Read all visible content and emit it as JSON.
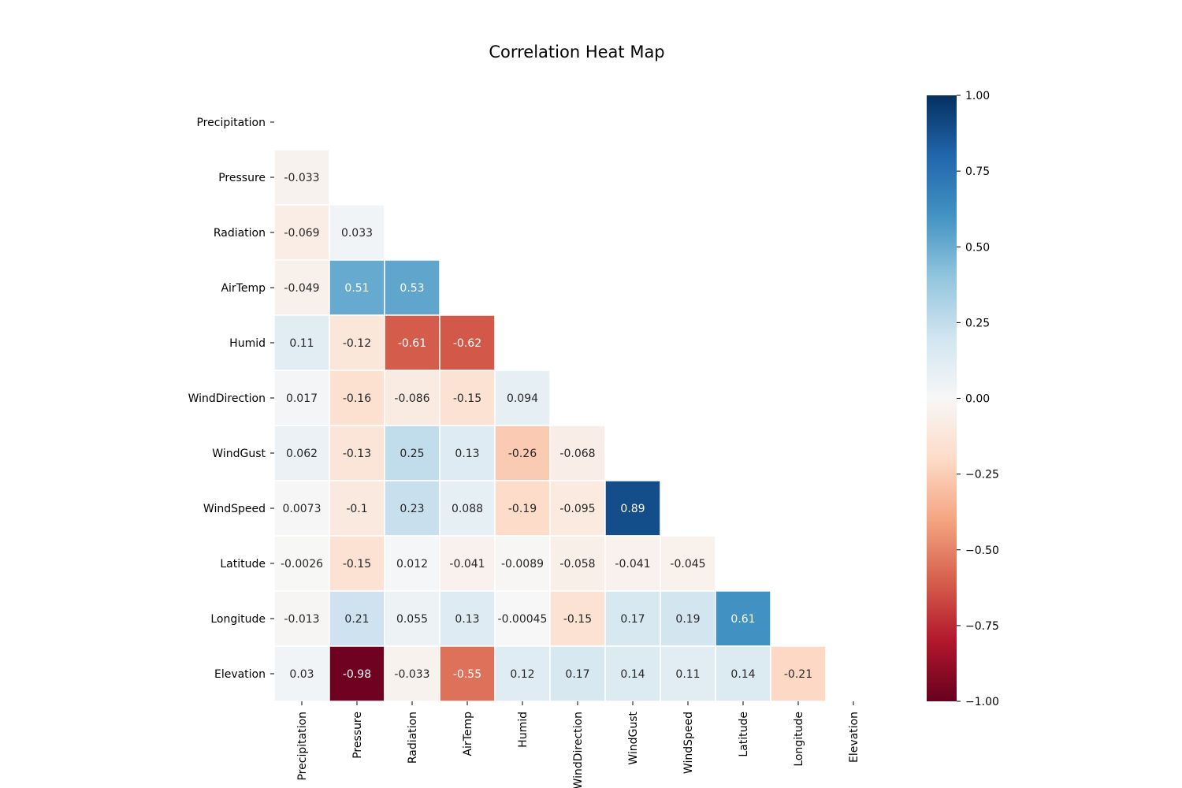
{
  "chart_data": {
    "type": "heatmap",
    "title": "Correlation Heat Map",
    "labels": [
      "Precipitation",
      "Pressure",
      "Radiation",
      "AirTemp",
      "Humid",
      "WindDirection",
      "WindGust",
      "WindSpeed",
      "Latitude",
      "Longitude",
      "Elevation"
    ],
    "matrix": [
      [],
      [
        "-0.033"
      ],
      [
        "-0.069",
        "0.033"
      ],
      [
        "-0.049",
        "0.51",
        "0.53"
      ],
      [
        "0.11",
        "-0.12",
        "-0.61",
        "-0.62"
      ],
      [
        "0.017",
        "-0.16",
        "-0.086",
        "-0.15",
        "0.094"
      ],
      [
        "0.062",
        "-0.13",
        "0.25",
        "0.13",
        "-0.26",
        "-0.068"
      ],
      [
        "0.0073",
        "-0.1",
        "0.23",
        "0.088",
        "-0.19",
        "-0.095",
        "0.89"
      ],
      [
        "-0.0026",
        "-0.15",
        "0.012",
        "-0.041",
        "-0.0089",
        "-0.058",
        "-0.041",
        "-0.045"
      ],
      [
        "-0.013",
        "0.21",
        "0.055",
        "0.13",
        "-0.00045",
        "-0.15",
        "0.17",
        "0.19",
        "0.61"
      ],
      [
        "0.03",
        "-0.98",
        "-0.033",
        "-0.55",
        "0.12",
        "0.17",
        "0.14",
        "0.11",
        "0.14",
        "-0.21"
      ]
    ],
    "mask": "upper-triangle-including-diagonal",
    "colorbar": {
      "colormap": "RdBu",
      "vmin": -1.0,
      "vmax": 1.0,
      "ticks": [
        "1.00",
        "0.75",
        "0.50",
        "0.25",
        "0.00",
        "−0.25",
        "−0.50",
        "−0.75",
        "−1.00"
      ]
    }
  }
}
